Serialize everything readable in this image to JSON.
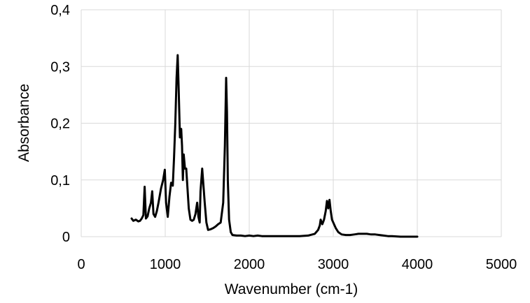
{
  "chart_data": {
    "type": "line",
    "title": "",
    "xlabel": "Wavenumber (cm-1)",
    "ylabel": "Absorbance",
    "xlim": [
      0,
      5000
    ],
    "ylim": [
      0,
      0.4
    ],
    "x_ticks": [
      0,
      1000,
      2000,
      3000,
      4000,
      5000
    ],
    "x_tick_labels": [
      "0",
      "1000",
      "2000",
      "3000",
      "4000",
      "5000"
    ],
    "y_ticks": [
      0,
      0.1,
      0.2,
      0.3,
      0.4
    ],
    "y_tick_labels": [
      "0",
      "0,1",
      "0,2",
      "0,3",
      "0,4"
    ],
    "grid": true,
    "legend": "none",
    "line_color": "#000000",
    "series": [
      {
        "x": [
          600,
          620,
          650,
          680,
          700,
          720,
          740,
          755,
          770,
          790,
          810,
          830,
          845,
          860,
          880,
          900,
          920,
          950,
          975,
          995,
          1010,
          1030,
          1050,
          1070,
          1090,
          1105,
          1120,
          1135,
          1148,
          1160,
          1175,
          1190,
          1200,
          1210,
          1220,
          1235,
          1250,
          1265,
          1280,
          1300,
          1320,
          1340,
          1360,
          1380,
          1395,
          1410,
          1420,
          1440,
          1455,
          1470,
          1490,
          1510,
          1540,
          1570,
          1600,
          1630,
          1660,
          1690,
          1710,
          1725,
          1735,
          1745,
          1760,
          1780,
          1800,
          1850,
          1900,
          1950,
          2000,
          2050,
          2100,
          2150,
          2200,
          2300,
          2400,
          2500,
          2600,
          2700,
          2780,
          2820,
          2840,
          2850,
          2870,
          2890,
          2910,
          2925,
          2940,
          2955,
          2970,
          2985,
          3000,
          3030,
          3060,
          3100,
          3150,
          3200,
          3250,
          3300,
          3350,
          3400,
          3450,
          3500,
          3550,
          3600,
          3650,
          3700,
          3800,
          3900,
          4000
        ],
        "values": [
          0.032,
          0.028,
          0.03,
          0.027,
          0.028,
          0.032,
          0.038,
          0.088,
          0.032,
          0.036,
          0.05,
          0.06,
          0.08,
          0.04,
          0.035,
          0.045,
          0.06,
          0.085,
          0.1,
          0.118,
          0.06,
          0.035,
          0.07,
          0.095,
          0.09,
          0.14,
          0.2,
          0.28,
          0.32,
          0.26,
          0.175,
          0.19,
          0.16,
          0.1,
          0.145,
          0.12,
          0.12,
          0.085,
          0.05,
          0.03,
          0.028,
          0.03,
          0.04,
          0.06,
          0.035,
          0.025,
          0.08,
          0.12,
          0.09,
          0.06,
          0.025,
          0.012,
          0.013,
          0.015,
          0.018,
          0.022,
          0.025,
          0.06,
          0.16,
          0.28,
          0.22,
          0.1,
          0.03,
          0.008,
          0.003,
          0.002,
          0.002,
          0.001,
          0.002,
          0.001,
          0.002,
          0.001,
          0.001,
          0.001,
          0.001,
          0.001,
          0.001,
          0.002,
          0.005,
          0.012,
          0.02,
          0.03,
          0.022,
          0.03,
          0.045,
          0.063,
          0.05,
          0.065,
          0.045,
          0.03,
          0.025,
          0.015,
          0.008,
          0.004,
          0.003,
          0.003,
          0.004,
          0.005,
          0.005,
          0.005,
          0.004,
          0.004,
          0.003,
          0.002,
          0.001,
          0.001,
          0.0,
          0.0,
          0.0
        ]
      }
    ]
  }
}
